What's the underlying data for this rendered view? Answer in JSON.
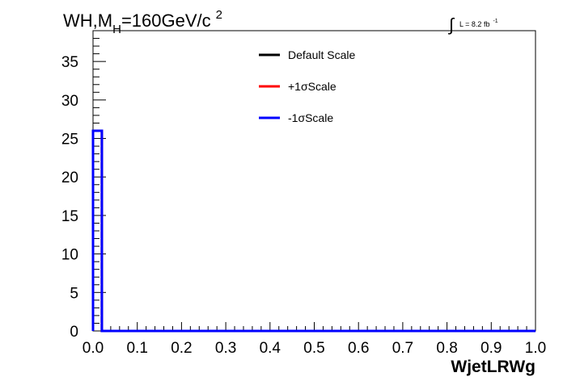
{
  "chart_data": {
    "type": "line",
    "title_main": "WH,M",
    "title_sub": "H",
    "title_rest": "=160GeV/c",
    "title_sup": "2",
    "lumi_label": "L = 8.2 fb",
    "lumi_sup": "-1",
    "xlabel": "WjetLRWg",
    "ylabel": "",
    "xlim": [
      0.0,
      1.0
    ],
    "ylim": [
      0,
      39
    ],
    "x_ticks": [
      "0.0",
      "0.1",
      "0.2",
      "0.3",
      "0.4",
      "0.5",
      "0.6",
      "0.7",
      "0.8",
      "0.9",
      "1.0"
    ],
    "y_ticks": [
      "0",
      "5",
      "10",
      "15",
      "20",
      "25",
      "30",
      "35"
    ],
    "legend_position": "top-center",
    "bin_edges": [
      0.0,
      0.02,
      1.0
    ],
    "series": [
      {
        "name": "Default Scale",
        "color": "#000000",
        "values": [
          26,
          0
        ]
      },
      {
        "name": "+1σScale",
        "color": "#ff0000",
        "values": [
          26,
          0
        ]
      },
      {
        "name": "-1σScale",
        "color": "#0000ff",
        "values": [
          26,
          0
        ]
      }
    ]
  }
}
